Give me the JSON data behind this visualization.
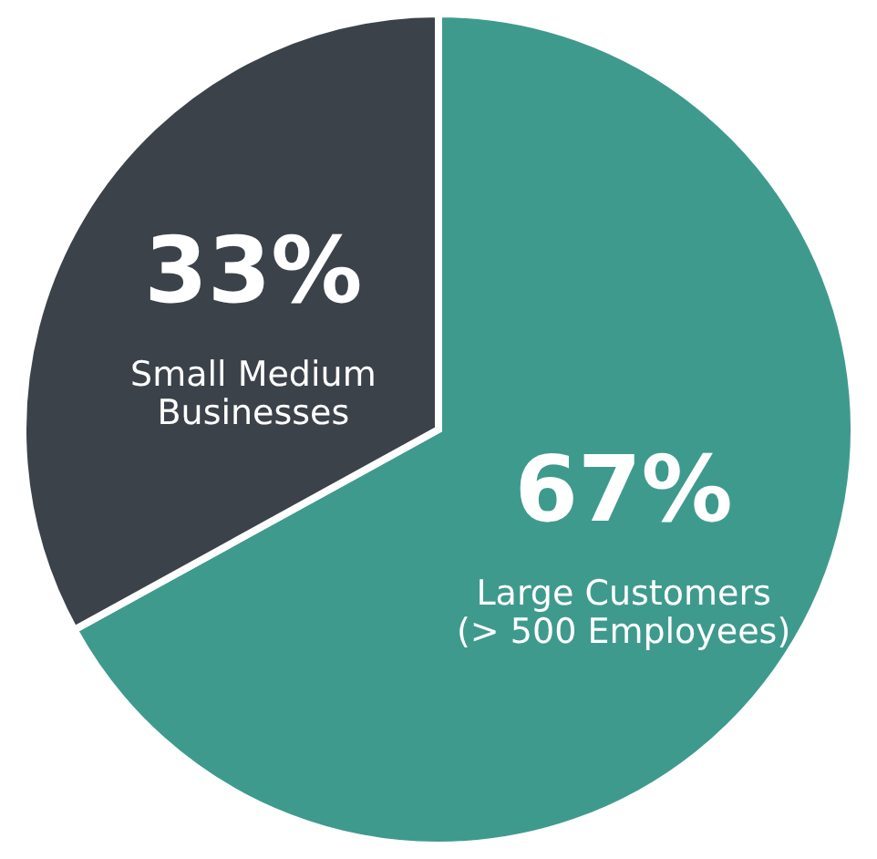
{
  "chart_data": {
    "type": "pie",
    "categories": [
      "Large Customers (> 500 Employees)",
      "Small Medium Businesses"
    ],
    "values": [
      67,
      33
    ],
    "colors": [
      "#3f9a8e",
      "#3c424a"
    ],
    "value_labels": [
      "67%",
      "33%"
    ]
  }
}
